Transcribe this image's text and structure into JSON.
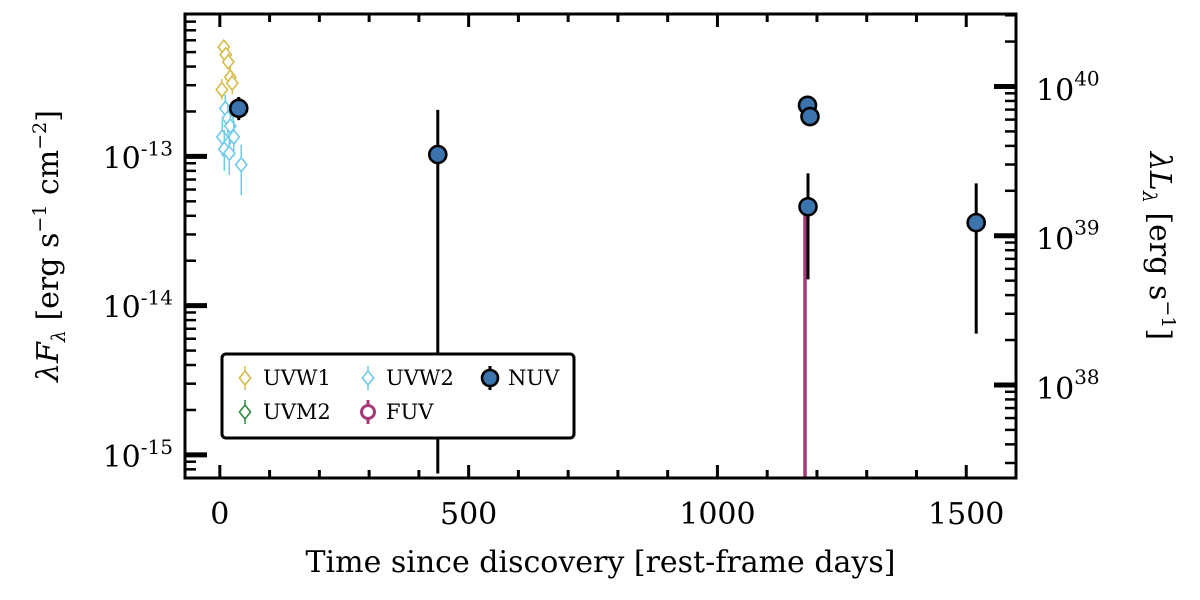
{
  "chart_data": {
    "type": "scatter",
    "xlabel": "Time since discovery [rest-frame days]",
    "ylabel_left": {
      "sym": "λF",
      "sub": "λ",
      "unit": " [erg s",
      "exp1": "−1",
      "mid": " cm",
      "exp2": "−2",
      "close": "]"
    },
    "ylabel_right": {
      "sym": "λL",
      "sub": "λ",
      "unit": " [erg s",
      "exp1": "−1",
      "close": "]"
    },
    "xlim": [
      -70,
      1600
    ],
    "ylim": [
      7e-16,
      9e-13
    ],
    "y_scale": "log",
    "x_ticks": [
      0,
      500,
      1000,
      1500
    ],
    "x_tick_labels": [
      "0",
      "500",
      "1000",
      "1500"
    ],
    "y_left_ticks": [
      1e-15,
      1e-14,
      1e-13
    ],
    "y_left_tick_labels": [
      {
        "base": "10",
        "exp": "-15"
      },
      {
        "base": "10",
        "exp": "-14"
      },
      {
        "base": "10",
        "exp": "-13"
      }
    ],
    "y_right_ticks": [
      1e+38,
      1e+39,
      1e+40
    ],
    "y_right_tick_labels": [
      {
        "base": "10",
        "exp": "38"
      },
      {
        "base": "10",
        "exp": "39"
      },
      {
        "base": "10",
        "exp": "40"
      }
    ],
    "lum_per_flux": 3.4e+52,
    "legend_position": "lower-left",
    "series": [
      {
        "name": "UVW1",
        "color": "#d4bc4a",
        "marker": "diamond-open",
        "points": [
          {
            "x": 8,
            "y": 5.4e-13,
            "lo": 4.9e-13,
            "hi": 6e-13
          },
          {
            "x": 12,
            "y": 4.8e-13,
            "lo": 4.3e-13,
            "hi": 5.4e-13
          },
          {
            "x": 17,
            "y": 4.3e-13,
            "lo": 3.8e-13,
            "hi": 4.9e-13
          },
          {
            "x": 21,
            "y": 3.4e-13,
            "lo": 2.9e-13,
            "hi": 4e-13
          },
          {
            "x": 25,
            "y": 3.1e-13,
            "lo": 2.6e-13,
            "hi": 3.7e-13
          },
          {
            "x": 4,
            "y": 2.8e-13,
            "lo": 2.4e-13,
            "hi": 3.3e-13
          }
        ]
      },
      {
        "name": "UVM2",
        "color": "#2e8b3e",
        "marker": "diamond-open",
        "points": []
      },
      {
        "name": "UVW2",
        "color": "#6fcbe8",
        "marker": "diamond-open",
        "points": [
          {
            "x": 11,
            "y": 2.1e-13,
            "lo": 1.7e-13,
            "hi": 2.6e-13
          },
          {
            "x": 16,
            "y": 1.8e-13,
            "lo": 1.4e-13,
            "hi": 2.2e-13
          },
          {
            "x": 21,
            "y": 1.6e-13,
            "lo": 1.2e-13,
            "hi": 2e-13
          },
          {
            "x": 5,
            "y": 1.35e-13,
            "lo": 1e-13,
            "hi": 1.75e-13
          },
          {
            "x": 28,
            "y": 1.35e-13,
            "lo": 1e-13,
            "hi": 1.75e-13
          },
          {
            "x": 9,
            "y": 1.12e-13,
            "lo": 8e-14,
            "hi": 1.5e-13
          },
          {
            "x": 19,
            "y": 1.05e-13,
            "lo": 7.5e-14,
            "hi": 1.4e-13
          },
          {
            "x": 43,
            "y": 8.8e-14,
            "lo": 5.5e-14,
            "hi": 1.2e-13
          }
        ]
      },
      {
        "name": "FUV",
        "color": "#a43b78",
        "marker": "circle-open",
        "points": [
          {
            "x": 1176,
            "y": 4e-14,
            "lo": 7e-16,
            "hi": 4.2e-14
          }
        ]
      },
      {
        "name": "NUV",
        "color": "#3b73ad",
        "marker": "circle-filled",
        "points": [
          {
            "x": 38,
            "y": 2.1e-13,
            "lo": 1.75e-13,
            "hi": 2.5e-13
          },
          {
            "x": 438,
            "y": 1.03e-13,
            "lo": 7.5e-16,
            "hi": 2.05e-13
          },
          {
            "x": 1181,
            "y": 2.2e-13,
            "lo": 1.95e-13,
            "hi": 2.45e-13
          },
          {
            "x": 1186,
            "y": 1.85e-13,
            "lo": 1.6e-13,
            "hi": 2.1e-13
          },
          {
            "x": 1182,
            "y": 4.6e-14,
            "lo": 1.5e-14,
            "hi": 7.7e-14
          },
          {
            "x": 1520,
            "y": 3.6e-14,
            "lo": 6.5e-15,
            "hi": 6.6e-14
          }
        ]
      }
    ]
  }
}
